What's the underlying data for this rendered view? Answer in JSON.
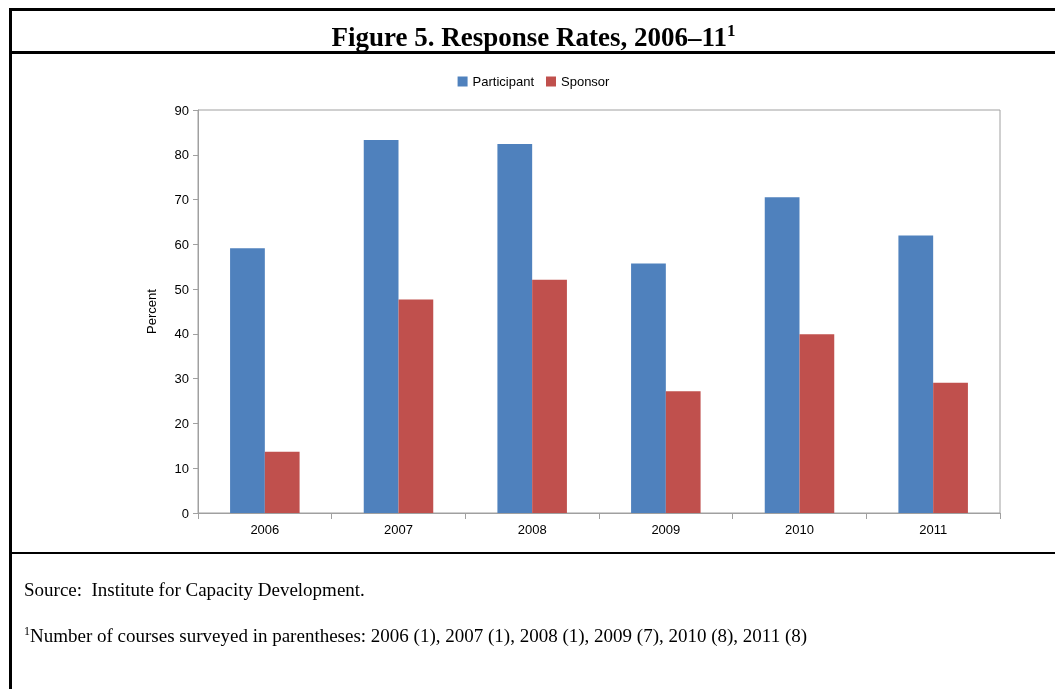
{
  "chart_data": {
    "type": "bar",
    "title": "Figure 5. Response Rates, 2006–11$^{1}$",
    "ylabel": "Percent",
    "categories": [
      "2006",
      "2007",
      "2008",
      "2009",
      "2010",
      "2011"
    ],
    "series": [
      {
        "name": "Participant",
        "color": "#4f81bd",
        "values": [
          59.1,
          83.3,
          82.4,
          55.7,
          70.5,
          62.0
        ]
      },
      {
        "name": "Sponsor",
        "color": "#c0504d",
        "values": [
          13.7,
          47.7,
          52.1,
          27.2,
          39.9,
          29.1
        ]
      }
    ],
    "ylim": [
      0,
      90
    ],
    "yticks": [
      0,
      10,
      20,
      30,
      40,
      50,
      60,
      70,
      80,
      90
    ],
    "legend": "top",
    "annotations": [
      "Source:  Institute for Capacity Development.",
      "$^{1}$Number of courses surveyed in parentheses: 2006 (1), 2007 (1), 2008 (1), 2009 (7), 2010 (8), 2011 (8)"
    ]
  }
}
